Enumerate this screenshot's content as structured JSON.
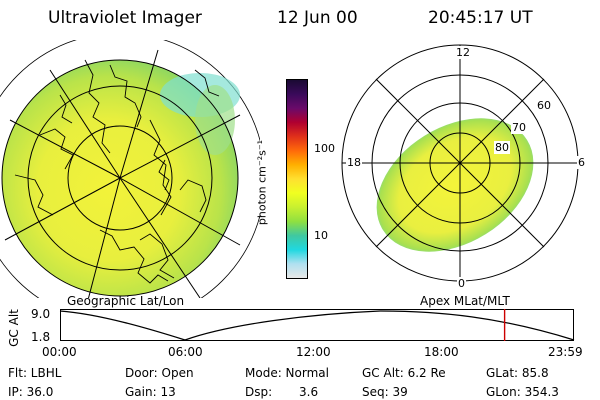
{
  "header": {
    "title": "Ultraviolet Imager",
    "date": "12 Jun 00",
    "time": "20:45:17 UT"
  },
  "left_panel": {
    "caption": "Geographic Lat/Lon"
  },
  "right_panel": {
    "caption": "Apex MLat/MLT",
    "clock_labels": {
      "top": "12",
      "left": "18",
      "right": "6",
      "bottom": "0"
    },
    "lat_labels": [
      "60",
      "70",
      "80"
    ]
  },
  "colorbar": {
    "label": "photon cm⁻²s⁻¹",
    "scale": "log",
    "ticks": [
      "100",
      "10"
    ],
    "colors": [
      "#1a0a33",
      "#3a0a5a",
      "#6a0a6a",
      "#b00030",
      "#e0301a",
      "#ff6a0a",
      "#ffb000",
      "#ffe030",
      "#f0ff20",
      "#c8f030",
      "#90e040",
      "#40c8a0",
      "#20d8e0",
      "#b0e0f0",
      "#e8e8e8"
    ]
  },
  "altitude_plot": {
    "ylabel": "GC Alt",
    "yticks": [
      "9.0",
      "1.8"
    ],
    "xticks": [
      "00:00",
      "06:00",
      "12:00",
      "18:00",
      "23:59"
    ],
    "marker_time_hours": 20.76,
    "marker_color": "#cc0000"
  },
  "footer": {
    "flt": "Flt: LBHL",
    "door": "Door: Open",
    "mode": "Mode: Normal",
    "gcalt": "GC Alt: 6.2 Re",
    "glat": "GLat: 85.8",
    "ip": "IP: 36.0",
    "gain": "Gain: 13",
    "dsp_label": "Dsp:",
    "dsp_value": "3.6",
    "seq": "Seq: 39",
    "glon": "GLon: 354.3"
  }
}
